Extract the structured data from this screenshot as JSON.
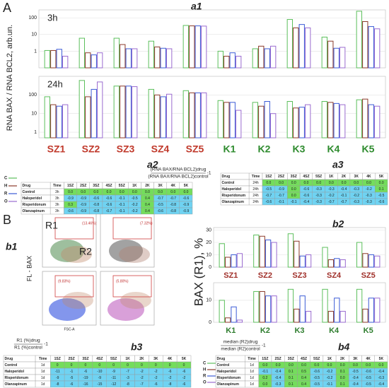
{
  "panel_labels": {
    "A": "A",
    "B": "B",
    "a1": "a1",
    "a2": "a2",
    "a3": "a3",
    "b1": "b1",
    "b2": "b2",
    "b3": "b3",
    "b4": "b4"
  },
  "chart_data": [
    {
      "type": "bar",
      "title": "3h",
      "ylabel": "RNA BAX / RNA BCL2, arb.un.",
      "log": true,
      "ylim": [
        0.1,
        300
      ],
      "yticks": [
        1,
        10,
        100
      ],
      "series": [
        {
          "name": "C",
          "color": "#5cbf5c",
          "values": [
            1.1,
            6,
            6,
            4,
            35,
            1.0,
            1.4,
            80,
            7,
            250
          ]
        },
        {
          "name": "H",
          "color": "#8b3a2a",
          "values": [
            1.1,
            0.8,
            2.5,
            1.8,
            33,
            0.5,
            2,
            25,
            4,
            60
          ]
        },
        {
          "name": "R",
          "color": "#3b5bd6",
          "values": [
            1.3,
            0.6,
            1.4,
            1.5,
            33,
            0.8,
            1.4,
            40,
            1.5,
            30
          ]
        },
        {
          "name": "O",
          "color": "#9a6bd0",
          "values": [
            0.5,
            0.8,
            1.4,
            1.4,
            32,
            0.5,
            2,
            25,
            1.7,
            22
          ]
        }
      ]
    },
    {
      "type": "bar",
      "title": "24h",
      "log": true,
      "ylim": [
        0.5,
        1000
      ],
      "yticks": [
        1,
        10,
        100
      ],
      "categories": [
        "SZ1",
        "SZ2",
        "SZ3",
        "SZ4",
        "SZ5",
        "K1",
        "K2",
        "K3",
        "K4",
        "K5"
      ],
      "category_colors": [
        "#c0392b",
        "#c0392b",
        "#c0392b",
        "#c0392b",
        "#c0392b",
        "#2e8b2e",
        "#2e8b2e",
        "#2e8b2e",
        "#2e8b2e",
        "#2e8b2e"
      ],
      "series": [
        {
          "color": "#5cbf5c",
          "values": [
            80,
            600,
            300,
            200,
            170,
            50,
            40,
            45,
            45,
            55
          ]
        },
        {
          "color": "#8b3a2a",
          "values": [
            30,
            80,
            300,
            100,
            130,
            40,
            25,
            20,
            40,
            60
          ]
        },
        {
          "color": "#3b5bd6",
          "values": [
            25,
            200,
            300,
            80,
            130,
            40,
            45,
            22,
            35,
            30
          ]
        },
        {
          "color": "#9a6bd0",
          "values": [
            30,
            500,
            280,
            110,
            130,
            15,
            10,
            30,
            30,
            25
          ]
        }
      ]
    },
    {
      "type": "bar",
      "ylabel": "BAX (R1), %",
      "ylim": [
        0,
        32
      ],
      "yticks": [
        0,
        10,
        20,
        30
      ],
      "categories": [
        "SZ1",
        "SZ2",
        "SZ3",
        "SZ4",
        "SZ5"
      ],
      "category_color": "#a0302a",
      "series": [
        {
          "name": "C",
          "color": "#5cbf5c",
          "values": [
            19,
            26,
            27,
            16,
            20
          ]
        },
        {
          "name": "H",
          "color": "#8b3a2a",
          "values": [
            8,
            25,
            21,
            6,
            11
          ]
        },
        {
          "name": "R",
          "color": "#3b5bd6",
          "values": [
            10,
            22,
            9,
            7,
            10
          ]
        },
        {
          "name": "O",
          "color": "#9a6bd0",
          "values": [
            11,
            20,
            10,
            6,
            9
          ]
        }
      ]
    },
    {
      "type": "bar",
      "ylim": [
        0,
        18
      ],
      "yticks": [
        0,
        10
      ],
      "categories": [
        "K1",
        "K2",
        "K3",
        "K4",
        "K5"
      ],
      "category_color": "#2e7d2e",
      "series": [
        {
          "color": "#5cbf5c",
          "values": [
            10,
            14,
            15,
            15,
            15
          ]
        },
        {
          "color": "#8b3a2a",
          "values": [
            2,
            14,
            6,
            5,
            6
          ]
        },
        {
          "color": "#3b5bd6",
          "values": [
            7,
            12,
            12,
            11,
            11
          ]
        },
        {
          "color": "#9a6bd0",
          "values": [
            1,
            12,
            5,
            5,
            11
          ]
        }
      ]
    }
  ],
  "formulas": {
    "a": {
      "numerator": "(RNA BAX/RNA BCL2)drug",
      "denominator": "(RNA BAX/RNA BCL2)control",
      "suffix": "-1"
    },
    "b3": {
      "numerator": "R1 (%)drug",
      "denominator": "R1 (%)control",
      "suffix": "-1"
    },
    "b4": {
      "numerator": "median (R2)drug",
      "denominator": "median (R2)control",
      "suffix": "-1"
    }
  },
  "tables": [
    {
      "columns": [
        "Drug",
        "Time",
        "1SZ",
        "2SZ",
        "3SZ",
        "4SZ",
        "5SZ",
        "1K",
        "2K",
        "3K",
        "4K",
        "5K"
      ],
      "rows": [
        [
          "Control",
          "3h",
          "0.0",
          "0.0",
          "0.0",
          "0.0",
          "0.0",
          "0.0",
          "0.0",
          "0.0",
          "0.0",
          "0.0"
        ],
        [
          "Haloperidol",
          "3h",
          "-0.9",
          "-0.9",
          "-0.6",
          "-0.6",
          "-0.1",
          "-0.5",
          "0.4",
          "-0.7",
          "-0.7",
          "-0.6"
        ],
        [
          "Risperidonum",
          "3h",
          "0.3",
          "-0.9",
          "-0.8",
          "-0.6",
          "-0.1",
          "-0.2",
          "0.4",
          "-0.5",
          "-0.8",
          "-0.9"
        ],
        [
          "Olanzapinum",
          "3h",
          "-0.6",
          "-0.9",
          "-0.8",
          "-0.7",
          "-0.1",
          "-0.2",
          "0.4",
          "-0.6",
          "-0.8",
          "-0.9"
        ]
      ]
    },
    {
      "columns": [
        "Drug",
        "Time",
        "1SZ",
        "2SZ",
        "3SZ",
        "4SZ",
        "5SZ",
        "1K",
        "2K",
        "3K",
        "4K",
        "5K"
      ],
      "rows": [
        [
          "Control",
          "24h",
          "0.0",
          "0.0",
          "0.0",
          "0.0",
          "0.0",
          "0.0",
          "0.0",
          "0.0",
          "0.0",
          "0.0"
        ],
        [
          "Haloperidol",
          "24h",
          "-0.5",
          "-0.9",
          "0.0",
          "-0.6",
          "-0.3",
          "-0.3",
          "-0.4",
          "-0.3",
          "-0.2",
          "0.1"
        ],
        [
          "Risperidonum",
          "24h",
          "-0.7",
          "-0.7",
          "0.0",
          "-0.6",
          "-0.3",
          "-0.2",
          "-0.1",
          "-0.2",
          "-0.3",
          "-0.5"
        ],
        [
          "Olanzapinum",
          "24h",
          "-0.6",
          "-0.1",
          "-0.1",
          "-0.4",
          "-0.3",
          "-0.7",
          "-0.7",
          "-0.3",
          "-0.3",
          "-0.6"
        ]
      ]
    },
    {
      "columns": [
        "Drug",
        "Time",
        "1SZ",
        "2SZ",
        "3SZ",
        "4SZ",
        "5SZ",
        "1K",
        "2K",
        "3K",
        "4K",
        "5K"
      ],
      "rows": [
        [
          "Control",
          "1d",
          "0",
          "0",
          "0",
          "0",
          "0",
          "0",
          "0",
          "0",
          "0",
          "0"
        ],
        [
          "Haloperidol",
          "1d",
          "-11",
          "-1",
          "-6",
          "-10",
          "-9",
          "-7",
          "-2",
          "-2",
          "-6",
          "-6"
        ],
        [
          "Risperidonum",
          "1d",
          "-9",
          "-5",
          "-19",
          "-9",
          "-11",
          "-3",
          "-2",
          "-2",
          "-2",
          "-2"
        ],
        [
          "Olanzapinum",
          "1d",
          "-8",
          "-6",
          "-16",
          "-15",
          "-12",
          "-8",
          "-7",
          "-6",
          "-8",
          "-6"
        ]
      ]
    },
    {
      "columns": [
        "Drug",
        "Time",
        "1SZ",
        "2SZ",
        "3SZ",
        "4SZ",
        "5SZ",
        "1K",
        "2K",
        "3K",
        "4K",
        "5K"
      ],
      "rows": [
        [
          "Control",
          "1d",
          "0.0",
          "0.0",
          "0.0",
          "0.0",
          "0.0",
          "0.0",
          "0.0",
          "0.0",
          "0.0",
          "0.0"
        ],
        [
          "Haloperidol",
          "1d",
          "-0.1",
          "-0.4",
          "0.1",
          "0.5",
          "-0.6",
          "-0.2",
          "0.1",
          "-0.5",
          "-0.6",
          "-0.4"
        ],
        [
          "Risperidonum",
          "1d",
          "0.2",
          "-0.4",
          "0.1",
          "0.4",
          "-0.5",
          "-0.2",
          "0.0",
          "-0.4",
          "-0.5",
          "-0.3"
        ],
        [
          "Olanzapinum",
          "1d",
          "0.0",
          "-0.3",
          "0.1",
          "0.4",
          "-0.5",
          "-0.1",
          "0.1",
          "-0.4",
          "-0.5",
          "-0.4"
        ]
      ]
    }
  ],
  "flow": {
    "regions": [
      "R1",
      "R2"
    ],
    "y_label": "FL - BAX",
    "x_label": "FSC-A",
    "gates": [
      "(13.46%)",
      "(7.32%)",
      "(9.83%)",
      "(5.80%)"
    ]
  }
}
